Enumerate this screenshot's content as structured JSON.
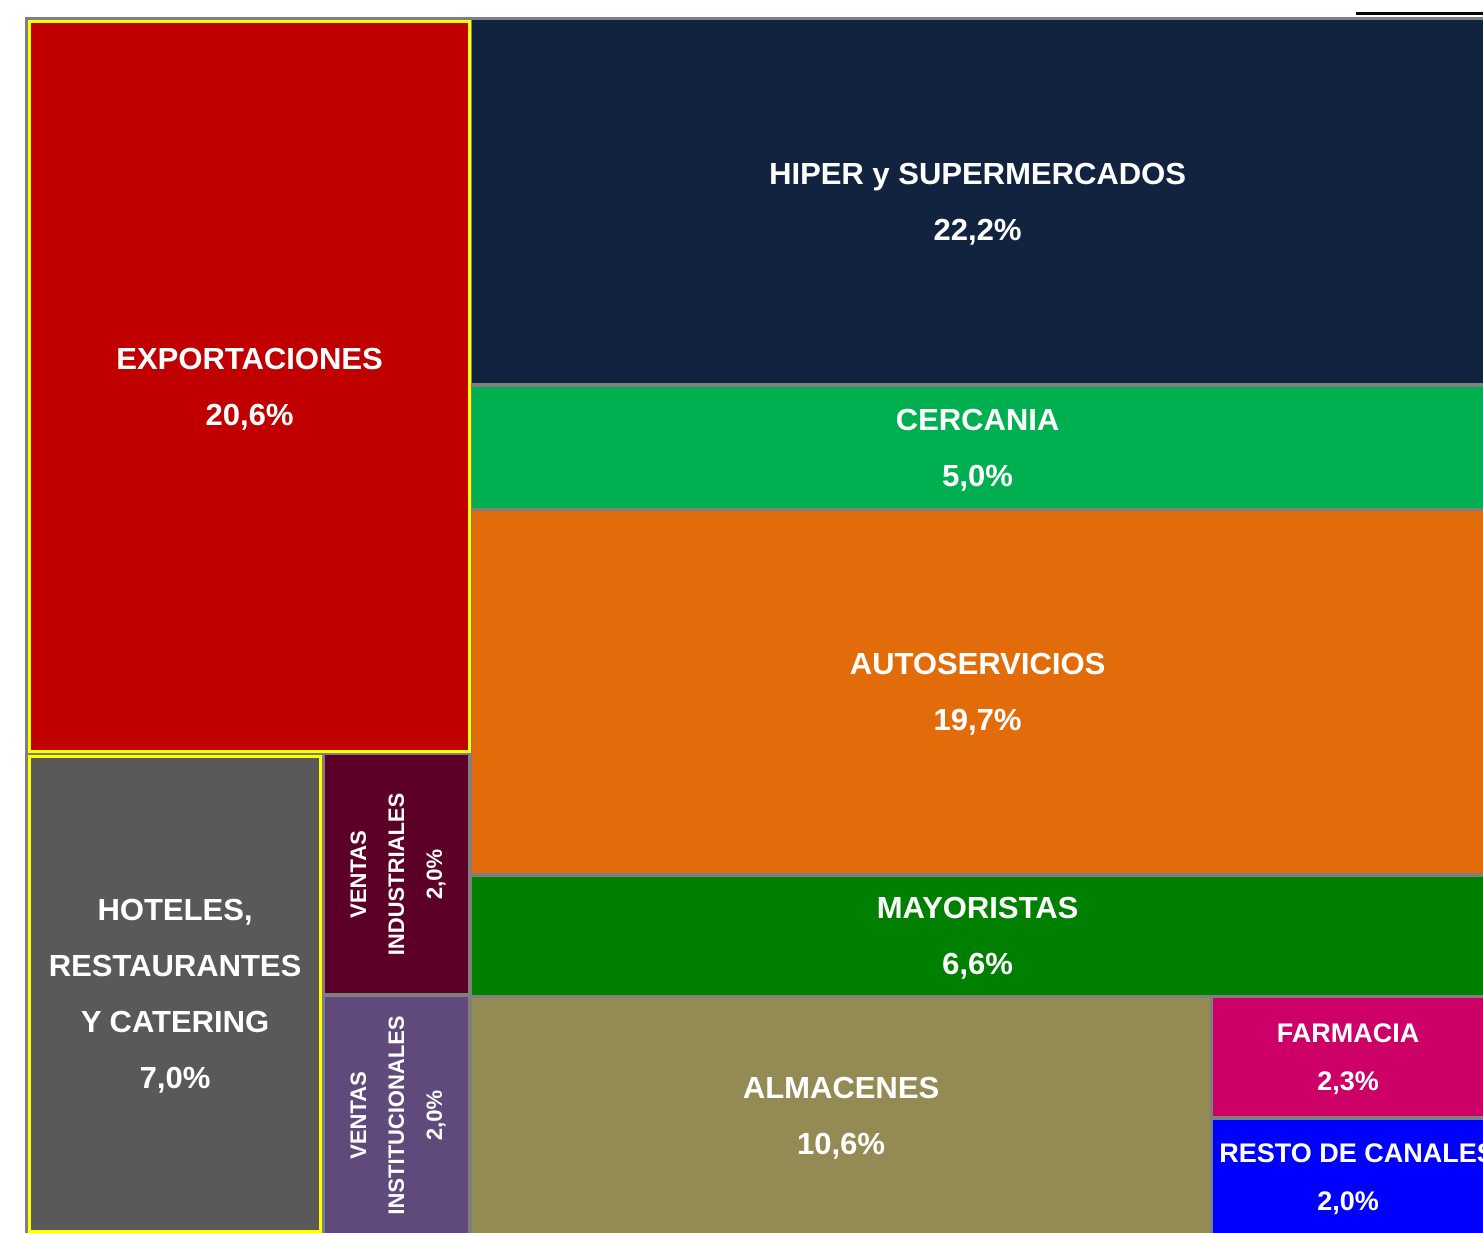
{
  "chart_data": {
    "type": "treemap",
    "categories": [
      "EXPORTACIONES",
      "HIPER y SUPERMERCADOS",
      "CERCANIA",
      "AUTOSERVICIOS",
      "MAYORISTAS",
      "HOTELES, RESTAURANTES Y CATERING",
      "VENTAS INDUSTRIALES",
      "VENTAS INSTITUCIONALES",
      "ALMACENES",
      "FARMACIA",
      "RESTO DE CANALES"
    ],
    "values": [
      20.6,
      22.2,
      5.0,
      19.7,
      6.6,
      7.0,
      2.0,
      2.0,
      10.6,
      2.3,
      2.0
    ],
    "value_labels": [
      "20,6%",
      "22,2%",
      "5,0%",
      "19,7%",
      "6,6%",
      "7,0%",
      "2,0%",
      "2,0%",
      "10,6%",
      "2,3%",
      "2,0%"
    ],
    "colors": [
      "#c00000",
      "#12233f",
      "#00b050",
      "#e36c0a",
      "#008000",
      "#595959",
      "#5c0028",
      "#604a7b",
      "#948a54",
      "#cc0066",
      "#0000ff"
    ]
  }
}
